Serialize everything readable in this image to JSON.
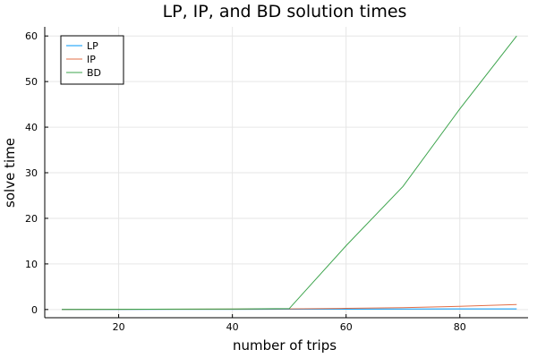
{
  "chart_data": {
    "type": "line",
    "title": "LP, IP, and BD solution times",
    "xlabel": "number of trips",
    "ylabel": "solve time",
    "xlim": [
      7,
      92
    ],
    "ylim": [
      -1.8,
      62
    ],
    "xticks": [
      20,
      40,
      60,
      80
    ],
    "yticks": [
      0,
      10,
      20,
      30,
      40,
      50,
      60
    ],
    "grid": true,
    "legend_position": "top-left",
    "x": [
      10,
      20,
      30,
      40,
      50,
      60,
      70,
      80,
      90
    ],
    "series": [
      {
        "name": "LP",
        "color": "#009AFA",
        "values": [
          0.01,
          0.02,
          0.03,
          0.05,
          0.07,
          0.09,
          0.11,
          0.13,
          0.15
        ]
      },
      {
        "name": "IP",
        "color": "#E36F47",
        "values": [
          0.02,
          0.04,
          0.06,
          0.1,
          0.15,
          0.25,
          0.4,
          0.7,
          1.1
        ]
      },
      {
        "name": "BD",
        "color": "#3DA44D",
        "values": [
          0.02,
          0.05,
          0.08,
          0.12,
          0.2,
          14,
          27,
          44,
          60
        ]
      }
    ]
  }
}
